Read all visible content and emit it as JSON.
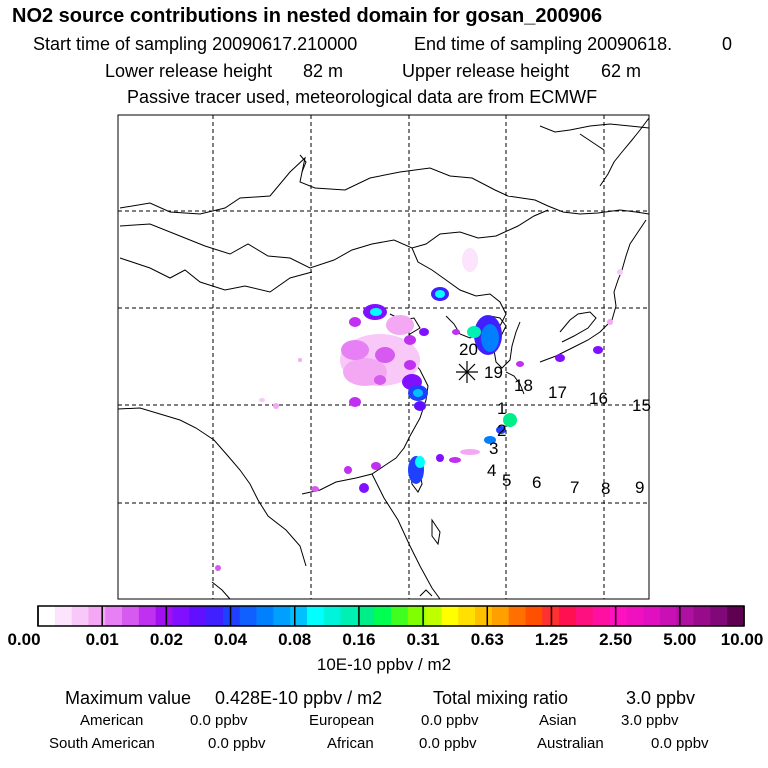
{
  "header": {
    "title": "NO2 source contributions in nested domain for gosan_200906",
    "start_label": "Start time of sampling 20090617.210000",
    "end_label": "End time of sampling 20090618.",
    "end_value": "0",
    "lower_label": "Lower release height",
    "lower_value": "82 m",
    "upper_label": "Upper release height",
    "upper_value": "62 m",
    "tracer_note": "Passive tracer used, meteorological data are from ECMWF"
  },
  "chart_data": {
    "type": "heatmap",
    "title": "NO2 source contributions in nested domain for gosan_200906",
    "receptor": "gosan",
    "trajectory_labels": [
      "1",
      "2",
      "3",
      "4",
      "5",
      "6",
      "7",
      "8",
      "9",
      "15",
      "16",
      "17",
      "18",
      "19",
      "20"
    ],
    "colorbar": {
      "unit": "10E-10 ppbv / m2",
      "ticks": [
        "0.00",
        "0.01",
        "0.02",
        "0.04",
        "0.08",
        "0.16",
        "0.31",
        "0.63",
        "1.25",
        "2.50",
        "5.00",
        "10.00"
      ],
      "colors": [
        "#ffffff",
        "#fce4fc",
        "#f8c8f8",
        "#f4a8f4",
        "#e680f4",
        "#d65af0",
        "#c030f0",
        "#a010f0",
        "#8010ff",
        "#6010ff",
        "#4020ff",
        "#2040ff",
        "#1060ff",
        "#0080ff",
        "#00a0ff",
        "#00c0ff",
        "#00ffff",
        "#00f4dc",
        "#00f0b4",
        "#00ee88",
        "#00ff50",
        "#40ff20",
        "#80ff00",
        "#c0ff00",
        "#ffff00",
        "#ffe000",
        "#ffc000",
        "#ffa000",
        "#ff7000",
        "#ff5000",
        "#ff3030",
        "#ff1050",
        "#ff1080",
        "#ff10a0",
        "#ff10c0",
        "#f010c0",
        "#e010c0",
        "#c810b4",
        "#b010a0",
        "#980c8c",
        "#800878",
        "#600050"
      ]
    }
  },
  "summary": {
    "max_label": "Maximum value",
    "max_value": "0.428E-10 ppbv / m2",
    "total_label": "Total mixing ratio",
    "total_value": "3.0 ppbv",
    "american_label": "American",
    "american_value": "0.0 ppbv",
    "european_label": "European",
    "european_value": "0.0 ppbv",
    "asian_label": "Asian",
    "asian_value": "3.0 ppbv",
    "south_american_label": "South American",
    "south_american_value": "0.0 ppbv",
    "african_label": "African",
    "african_value": "0.0 ppbv",
    "australian_label": "Australian",
    "australian_value": "0.0 ppbv"
  }
}
